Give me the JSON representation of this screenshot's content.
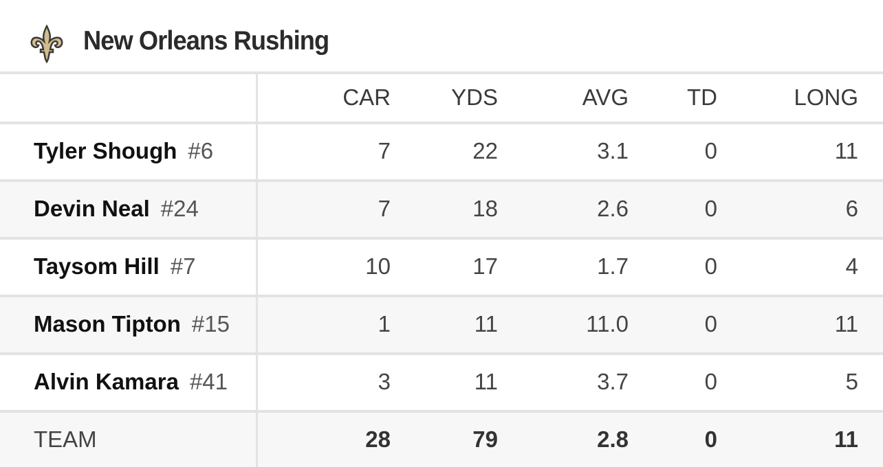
{
  "title": "New Orleans Rushing",
  "logo_icon": "fleur-de-lis-icon",
  "colors": {
    "logo_gold": "#d3bc8d",
    "logo_dark": "#3a3a3a",
    "row_alt": "#f7f7f8",
    "divider": "#e3e3e3"
  },
  "columns": [
    "CAR",
    "YDS",
    "AVG",
    "TD",
    "LONG"
  ],
  "players": [
    {
      "name": "Tyler Shough",
      "jersey": "#6",
      "stats": [
        "7",
        "22",
        "3.1",
        "0",
        "11"
      ]
    },
    {
      "name": "Devin Neal",
      "jersey": "#24",
      "stats": [
        "7",
        "18",
        "2.6",
        "0",
        "6"
      ]
    },
    {
      "name": "Taysom Hill",
      "jersey": "#7",
      "stats": [
        "10",
        "17",
        "1.7",
        "0",
        "4"
      ]
    },
    {
      "name": "Mason Tipton",
      "jersey": "#15",
      "stats": [
        "1",
        "11",
        "11.0",
        "0",
        "11"
      ]
    },
    {
      "name": "Alvin Kamara",
      "jersey": "#41",
      "stats": [
        "3",
        "11",
        "3.7",
        "0",
        "5"
      ]
    }
  ],
  "team": {
    "label": "TEAM",
    "stats": [
      "28",
      "79",
      "2.8",
      "0",
      "11"
    ]
  }
}
